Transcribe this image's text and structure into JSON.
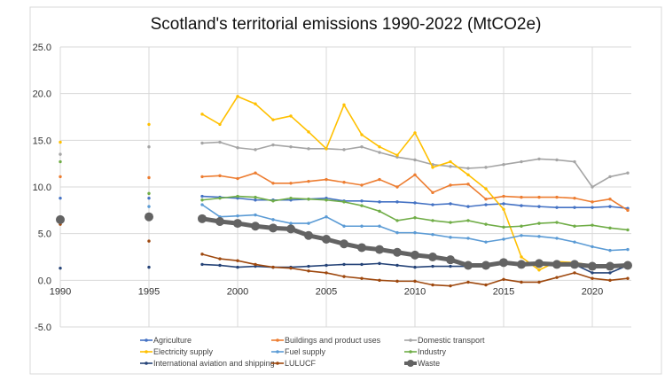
{
  "chart_data": {
    "type": "line",
    "title": "Scotland's territorial emissions 1990-2022 (MtCO2e)",
    "xlabel": "",
    "ylabel": "",
    "ylim": [
      -5,
      25
    ],
    "xlim": [
      1990,
      2022
    ],
    "yticks": [
      "25.0",
      "20.0",
      "15.0",
      "10.0",
      "5.0",
      "0.0",
      "-5.0"
    ],
    "xticks": [
      "1990",
      "1995",
      "2000",
      "2005",
      "2010",
      "2015",
      "2020"
    ],
    "grid": true,
    "legend_position": "bottom",
    "x": [
      1990,
      1995,
      1998,
      1999,
      2000,
      2001,
      2002,
      2003,
      2004,
      2005,
      2006,
      2007,
      2008,
      2009,
      2010,
      2011,
      2012,
      2013,
      2014,
      2015,
      2016,
      2017,
      2018,
      2019,
      2020,
      2021,
      2022
    ],
    "series": [
      {
        "name": "Agriculture",
        "color": "#4472c4",
        "values": [
          8.8,
          8.8,
          9.0,
          8.9,
          8.8,
          8.6,
          8.6,
          8.6,
          8.7,
          8.8,
          8.5,
          8.5,
          8.4,
          8.4,
          8.3,
          8.1,
          8.2,
          7.9,
          8.1,
          8.2,
          8.0,
          7.9,
          7.8,
          7.8,
          7.8,
          7.9,
          7.7
        ]
      },
      {
        "name": "Buildings and product uses",
        "color": "#ed7d31",
        "values": [
          11.1,
          11.0,
          11.1,
          11.2,
          10.9,
          11.5,
          10.4,
          10.4,
          10.6,
          10.8,
          10.5,
          10.2,
          10.8,
          10.0,
          11.3,
          9.4,
          10.2,
          10.3,
          8.7,
          9.0,
          8.9,
          8.9,
          8.9,
          8.8,
          8.4,
          8.7,
          7.5
        ]
      },
      {
        "name": "Domestic transport",
        "color": "#a5a5a5",
        "values": [
          13.5,
          14.3,
          14.7,
          14.8,
          14.2,
          14.0,
          14.5,
          14.3,
          14.1,
          14.1,
          14.0,
          14.3,
          13.7,
          13.2,
          12.9,
          12.4,
          12.2,
          12.0,
          12.1,
          12.4,
          12.7,
          13.0,
          12.9,
          12.7,
          10.0,
          11.1,
          11.5
        ]
      },
      {
        "name": "Electricity supply",
        "color": "#ffc000",
        "values": [
          14.8,
          16.7,
          17.8,
          16.7,
          19.7,
          18.9,
          17.2,
          17.6,
          15.9,
          14.1,
          18.8,
          15.6,
          14.3,
          13.4,
          15.8,
          12.1,
          12.7,
          11.3,
          9.8,
          7.6,
          2.5,
          1.1,
          2.0,
          1.9,
          1.6,
          1.6,
          1.7
        ]
      },
      {
        "name": "Fuel supply",
        "color": "#5b9bd5",
        "values": [
          null,
          7.9,
          8.1,
          6.8,
          6.9,
          7.0,
          6.5,
          6.1,
          6.1,
          6.8,
          5.8,
          5.8,
          5.8,
          5.1,
          5.1,
          4.9,
          4.6,
          4.5,
          4.1,
          4.4,
          4.8,
          4.7,
          4.5,
          4.1,
          3.6,
          3.2,
          3.3
        ]
      },
      {
        "name": "Industry",
        "color": "#70ad47",
        "values": [
          12.7,
          9.3,
          8.6,
          8.8,
          9.0,
          8.9,
          8.5,
          8.8,
          8.7,
          8.6,
          8.4,
          8.0,
          7.4,
          6.4,
          6.7,
          6.4,
          6.2,
          6.4,
          6.0,
          5.7,
          5.8,
          6.1,
          6.2,
          5.8,
          5.9,
          5.6,
          5.4
        ]
      },
      {
        "name": "International aviation and shipping",
        "color": "#264478",
        "values": [
          1.3,
          1.4,
          1.7,
          1.6,
          1.4,
          1.5,
          1.4,
          1.4,
          1.5,
          1.6,
          1.7,
          1.7,
          1.8,
          1.6,
          1.4,
          1.5,
          1.5,
          1.5,
          1.6,
          1.7,
          1.8,
          1.9,
          1.8,
          1.7,
          0.8,
          0.8,
          1.6
        ]
      },
      {
        "name": "LULUCF",
        "color": "#9e480e",
        "values": [
          6.0,
          4.2,
          2.8,
          2.3,
          2.1,
          1.7,
          1.4,
          1.3,
          1.0,
          0.8,
          0.4,
          0.2,
          0.0,
          -0.1,
          -0.1,
          -0.5,
          -0.6,
          -0.2,
          -0.5,
          0.1,
          -0.2,
          -0.2,
          0.3,
          0.8,
          0.2,
          0.0,
          0.2
        ]
      },
      {
        "name": "Waste",
        "color": "#636363",
        "values": [
          6.5,
          6.8,
          6.6,
          6.3,
          6.1,
          5.8,
          5.6,
          5.5,
          4.8,
          4.4,
          3.9,
          3.5,
          3.3,
          3.0,
          2.7,
          2.5,
          2.2,
          1.6,
          1.6,
          1.9,
          1.7,
          1.8,
          1.7,
          1.7,
          1.5,
          1.5,
          1.6
        ]
      }
    ]
  }
}
